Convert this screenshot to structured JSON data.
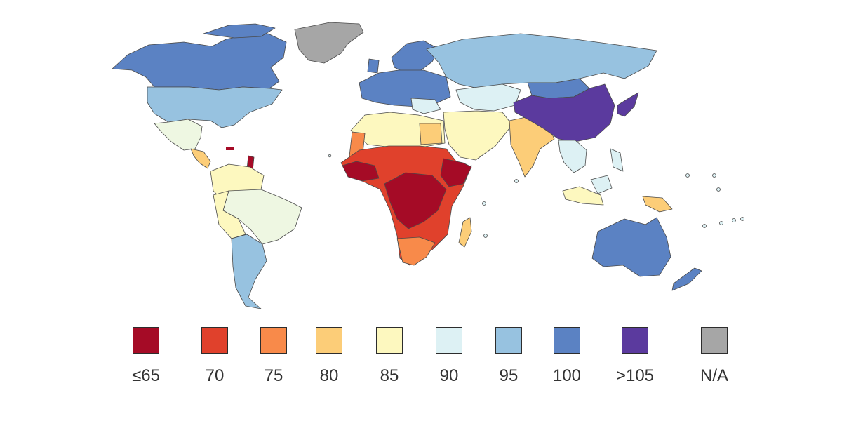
{
  "colors": {
    "le65": "#a50b26",
    "70": "#e0412c",
    "75": "#f88a4a",
    "80": "#fccd78",
    "85": "#fdf8bf",
    "90": "#ddf1f4",
    "95": "#97c2e0",
    "100": "#5b82c3",
    "gt105": "#5b3a9e",
    "na": "#a6a6a6",
    "green_tint": "#eef7e2"
  },
  "legend": [
    {
      "label": "≤65",
      "color": "#a50b26"
    },
    {
      "label": "70",
      "color": "#e0412c"
    },
    {
      "label": "75",
      "color": "#f88a4a"
    },
    {
      "label": "80",
      "color": "#fccd78"
    },
    {
      "label": "85",
      "color": "#fdf8bf"
    },
    {
      "label": "90",
      "color": "#ddf1f4"
    },
    {
      "label": "95",
      "color": "#97c2e0"
    },
    {
      "label": "100",
      "color": "#5b82c3"
    },
    {
      "label": ">105",
      "color": "#5b3a9e"
    },
    {
      "label": "N/A",
      "color": "#a6a6a6"
    }
  ]
}
